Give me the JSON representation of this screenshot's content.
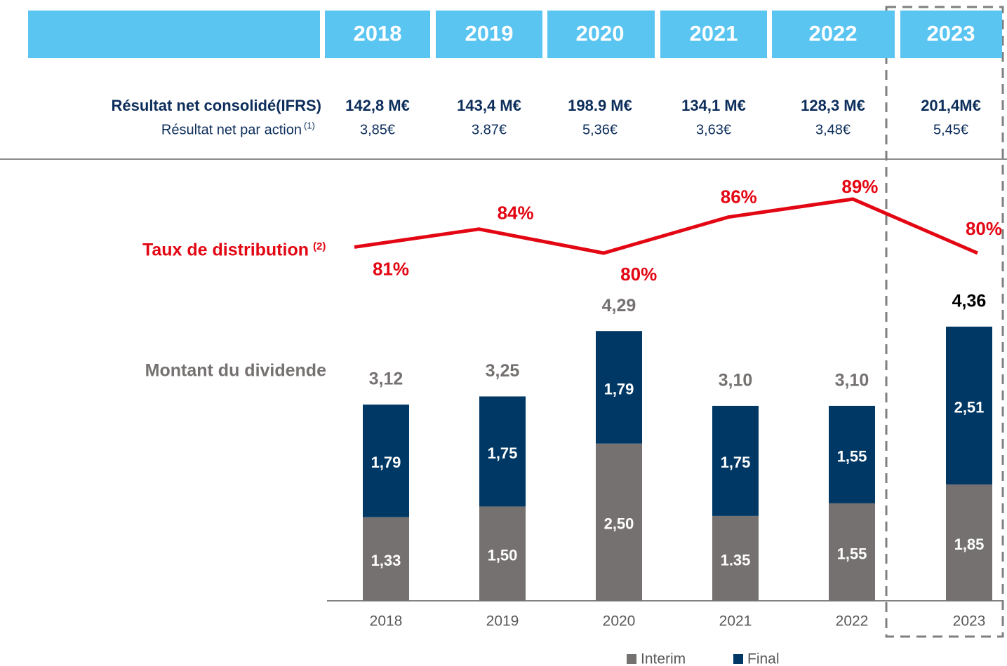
{
  "table": {
    "header": [
      "2018",
      "2019",
      "2020",
      "2021",
      "2022",
      "2023"
    ],
    "rows": [
      {
        "label": "Résultat net consolidé(IFRS)",
        "values": [
          "142,8 M€",
          "143,4 M€",
          "198.9 M€",
          "134,1 M€",
          "128,3 M€",
          "201,4M€"
        ]
      },
      {
        "label": "Résultat net par action",
        "note": "(1)",
        "values": [
          "3,85€",
          "3.87€",
          "5,36€",
          "3,63€",
          "3,48€",
          "5,45€"
        ]
      }
    ]
  },
  "chart_data": {
    "type": "bar",
    "stacked": true,
    "label": "Montant du dividende",
    "categories": [
      "2018",
      "2019",
      "2020",
      "2021",
      "2022",
      "2023"
    ],
    "series": [
      {
        "name": "Interim",
        "color": "#767171",
        "values": [
          1.33,
          1.5,
          2.5,
          1.35,
          1.55,
          1.85
        ],
        "value_labels": [
          "1,33",
          "1,50",
          "2,50",
          "1.35",
          "1,55",
          "1,85"
        ]
      },
      {
        "name": "Final",
        "color": "#003865",
        "values": [
          1.79,
          1.75,
          1.79,
          1.75,
          1.55,
          2.51
        ],
        "value_labels": [
          "1,79",
          "1,75",
          "1,79",
          "1,75",
          "1,55",
          "2,51"
        ]
      }
    ],
    "totals": {
      "values": [
        3.12,
        3.25,
        4.29,
        3.1,
        3.1,
        4.36
      ],
      "value_labels": [
        "3,12",
        "3,25",
        "4,29",
        "3,10",
        "3,10",
        "4,36"
      ]
    },
    "line": {
      "name": "Taux de distribution",
      "note": "(2)",
      "color": "#e30613",
      "values": [
        81,
        84,
        80,
        86,
        89,
        80
      ],
      "value_labels": [
        "81%",
        "84%",
        "80%",
        "86%",
        "89%",
        "80%"
      ]
    }
  }
}
